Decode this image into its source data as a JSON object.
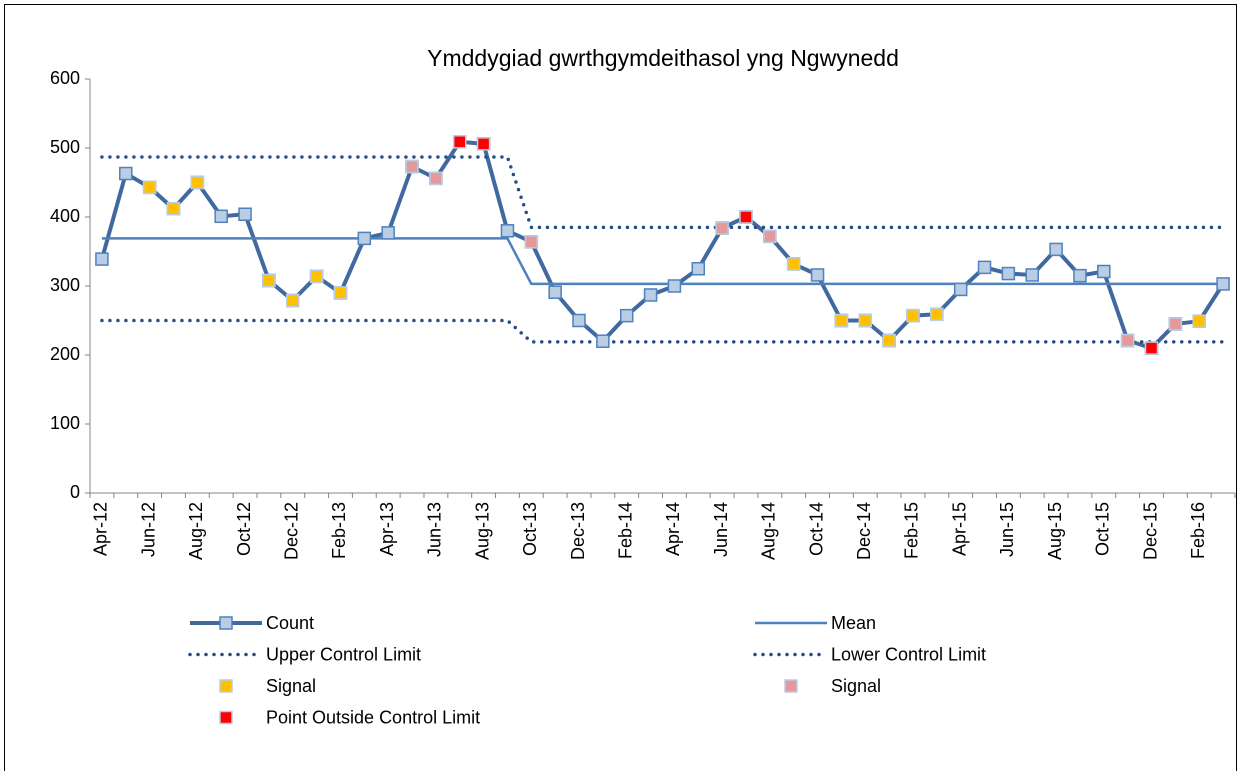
{
  "chart_data": {
    "type": "line",
    "title": "Ymddygiad gwrthgymdeithasol yng Ngwynedd",
    "categories": [
      "Apr-12",
      null,
      "Jun-12",
      null,
      "Aug-12",
      null,
      "Oct-12",
      null,
      "Dec-12",
      null,
      "Feb-13",
      null,
      "Apr-13",
      null,
      "Jun-13",
      null,
      "Aug-13",
      null,
      "Oct-13",
      null,
      "Dec-13",
      null,
      "Feb-14",
      null,
      "Apr-14",
      null,
      "Jun-14",
      null,
      "Aug-14",
      null,
      "Oct-14",
      null,
      "Dec-14",
      null,
      "Feb-15",
      null,
      "Apr-15",
      null,
      "Jun-15",
      null,
      "Aug-15",
      null,
      "Oct-15",
      null,
      "Dec-15",
      null,
      "Feb-16",
      null
    ],
    "ylim": [
      0,
      600
    ],
    "yticks": [
      0,
      100,
      200,
      300,
      400,
      500,
      600
    ],
    "series": [
      {
        "name": "Count",
        "color": "#41699f",
        "line": "solid",
        "width": 4,
        "marker": true,
        "marker_fill": "#b9cde5",
        "marker_edge": "#4f81bd",
        "values": [
          339,
          463,
          443,
          412,
          450,
          401,
          404,
          308,
          279,
          314,
          290,
          369,
          377,
          473,
          456,
          509,
          506,
          380,
          364,
          291,
          250,
          220,
          257,
          287,
          300,
          325,
          384,
          400,
          372,
          332,
          316,
          250,
          250,
          221,
          257,
          259,
          295,
          327,
          318,
          316,
          353,
          315,
          321,
          221,
          210,
          245,
          249,
          303
        ]
      },
      {
        "name": "Mean",
        "color": "#4f81bd",
        "line": "solid",
        "width": 2.5,
        "marker": false,
        "values": [
          369,
          369,
          369,
          369,
          369,
          369,
          369,
          369,
          369,
          369,
          369,
          369,
          369,
          369,
          369,
          369,
          369,
          369,
          303,
          303,
          303,
          303,
          303,
          303,
          303,
          303,
          303,
          303,
          303,
          303,
          303,
          303,
          303,
          303,
          303,
          303,
          303,
          303,
          303,
          303,
          303,
          303,
          303,
          303,
          303,
          303,
          303,
          303
        ]
      },
      {
        "name": "Upper Control Limit",
        "color": "#254e84",
        "line": "dotted",
        "width": 3.5,
        "marker": false,
        "values": [
          487,
          487,
          487,
          487,
          487,
          487,
          487,
          487,
          487,
          487,
          487,
          487,
          487,
          487,
          487,
          487,
          487,
          487,
          385,
          385,
          385,
          385,
          385,
          385,
          385,
          385,
          385,
          385,
          385,
          385,
          385,
          385,
          385,
          385,
          385,
          385,
          385,
          385,
          385,
          385,
          385,
          385,
          385,
          385,
          385,
          385,
          385,
          385
        ]
      },
      {
        "name": "Lower Control Limit",
        "color": "#254e84",
        "line": "dotted",
        "width": 3.5,
        "marker": false,
        "values": [
          250,
          250,
          250,
          250,
          250,
          250,
          250,
          250,
          250,
          250,
          250,
          250,
          250,
          250,
          250,
          250,
          250,
          250,
          219,
          219,
          219,
          219,
          219,
          219,
          219,
          219,
          219,
          219,
          219,
          219,
          219,
          219,
          219,
          219,
          219,
          219,
          219,
          219,
          219,
          219,
          219,
          219,
          219,
          219,
          219,
          219,
          219,
          219
        ]
      },
      {
        "name": "Signal",
        "color": "#ffc000",
        "line": "none",
        "marker": true,
        "marker_fill": "#ffc000",
        "marker_edge": "#b9cde5",
        "values": [
          null,
          null,
          443,
          412,
          450,
          null,
          null,
          308,
          279,
          314,
          290,
          null,
          null,
          null,
          null,
          null,
          null,
          null,
          null,
          null,
          null,
          null,
          null,
          null,
          null,
          null,
          null,
          null,
          null,
          332,
          null,
          250,
          250,
          221,
          257,
          259,
          null,
          null,
          null,
          null,
          null,
          null,
          null,
          null,
          null,
          null,
          249,
          null
        ]
      },
      {
        "name": "Signal",
        "color": "#e6999a",
        "line": "none",
        "marker": true,
        "marker_fill": "#e6999a",
        "marker_edge": "#b9cde5",
        "values": [
          null,
          null,
          null,
          null,
          null,
          null,
          null,
          null,
          null,
          null,
          null,
          null,
          null,
          473,
          456,
          null,
          null,
          null,
          364,
          null,
          null,
          null,
          null,
          null,
          null,
          null,
          384,
          null,
          372,
          null,
          null,
          null,
          null,
          null,
          null,
          null,
          null,
          null,
          null,
          null,
          null,
          null,
          null,
          221,
          null,
          245,
          null,
          null
        ]
      },
      {
        "name": "Point Outside Control Limit",
        "color": "#ff0000",
        "line": "none",
        "marker": true,
        "marker_fill": "#ff0000",
        "marker_edge": "#b9cde5",
        "values": [
          null,
          null,
          null,
          null,
          null,
          null,
          null,
          null,
          null,
          null,
          null,
          null,
          null,
          null,
          null,
          509,
          506,
          null,
          null,
          null,
          null,
          null,
          null,
          null,
          null,
          null,
          null,
          400,
          null,
          null,
          null,
          null,
          null,
          null,
          null,
          null,
          null,
          null,
          null,
          null,
          null,
          null,
          null,
          null,
          210,
          null,
          null,
          null
        ]
      }
    ]
  }
}
